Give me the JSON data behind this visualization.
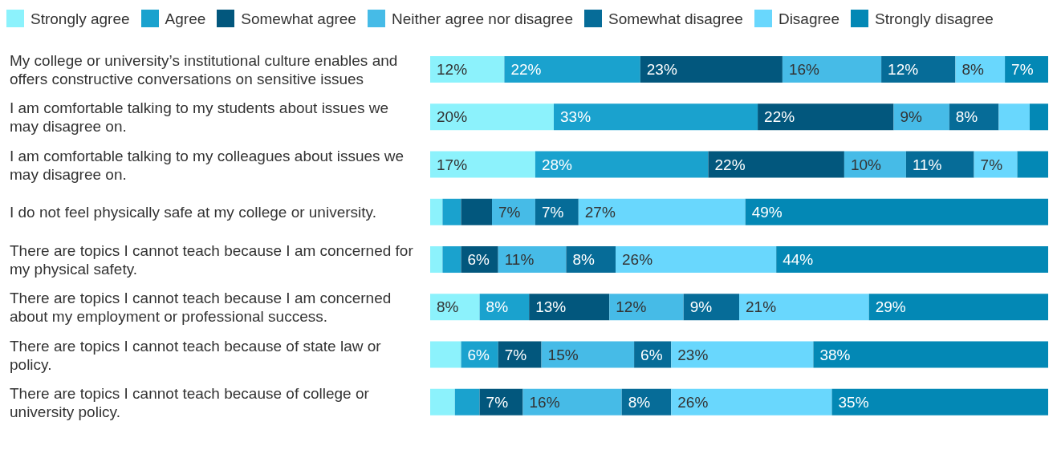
{
  "chart_data": {
    "type": "bar",
    "orientation": "horizontal",
    "stacked": true,
    "legend": "top",
    "categories": [
      "My college or university’s institutional culture enables and offers constructive conversations on sensitive issues",
      "I am comfortable talking to my students about issues we may disagree on.",
      "I am comfortable talking to my colleagues about issues we may disagree on.",
      "I do not feel physically safe at my college or university.",
      "There are topics I cannot teach because I am concerned for my physical safety.",
      "There are topics I cannot teach because I am concerned about my employment or professional success.",
      "There are topics I cannot teach because of state law or policy.",
      "There are topics I cannot teach because of college or university policy."
    ],
    "series": [
      {
        "name": "Strongly agree",
        "color": "#8cf2fc",
        "values": [
          12,
          20,
          17,
          2,
          2,
          8,
          5,
          4
        ],
        "value_labels": [
          "12%",
          "20%",
          "17%",
          null,
          null,
          "8%",
          null,
          null
        ]
      },
      {
        "name": "Agree",
        "color": "#1aa2ce",
        "values": [
          22,
          33,
          28,
          3,
          3,
          8,
          6,
          4
        ],
        "value_labels": [
          "22%",
          "33%",
          "28%",
          null,
          null,
          "8%",
          "6%",
          null
        ]
      },
      {
        "name": "Somewhat agree",
        "color": "#02577d",
        "values": [
          23,
          22,
          22,
          5,
          6,
          13,
          7,
          7
        ],
        "value_labels": [
          "23%",
          "22%",
          "22%",
          null,
          "6%",
          "13%",
          "7%",
          "7%"
        ]
      },
      {
        "name": "Neither agree nor disagree",
        "color": "#46bbe7",
        "values": [
          16,
          9,
          10,
          7,
          11,
          12,
          15,
          16
        ],
        "value_labels": [
          "16%",
          "9%",
          "10%",
          "7%",
          "11%",
          "12%",
          "15%",
          "16%"
        ]
      },
      {
        "name": "Somewhat disagree",
        "color": "#066c98",
        "values": [
          12,
          8,
          11,
          7,
          8,
          9,
          6,
          8
        ],
        "value_labels": [
          "12%",
          "8%",
          "11%",
          "7%",
          "8%",
          "9%",
          "6%",
          "8%"
        ]
      },
      {
        "name": "Disagree",
        "color": "#69d7fd",
        "values": [
          8,
          5,
          7,
          27,
          26,
          21,
          23,
          26
        ],
        "value_labels": [
          "8%",
          null,
          "7%",
          "27%",
          "26%",
          "21%",
          "23%",
          "26%"
        ]
      },
      {
        "name": "Strongly disagree",
        "color": "#0388b5",
        "values": [
          7,
          3,
          5,
          49,
          44,
          29,
          38,
          35
        ],
        "value_labels": [
          "7%",
          null,
          null,
          "49%",
          "44%",
          "29%",
          "38%",
          "35%"
        ]
      }
    ]
  }
}
